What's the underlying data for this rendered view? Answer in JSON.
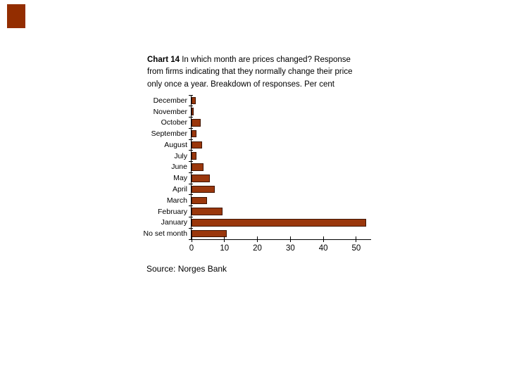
{
  "slide": {
    "background": "#ffffff",
    "accent_rect_color": "#932d00"
  },
  "title": {
    "bold": "Chart 14",
    "line1_rest": " In which month are prices changed? Response",
    "line2": "from firms indicating that they normally change their price",
    "line3": "only once a year. Breakdown of responses. Per cent"
  },
  "source_note": "Source: Norges Bank",
  "chart_data": {
    "type": "bar",
    "orientation": "horizontal",
    "title": "Chart 14 In which month are prices changed? Response from firms indicating that they normally change their price only once a year. Breakdown of responses. Per cent",
    "categories": [
      "December",
      "November",
      "October",
      "September",
      "August",
      "July",
      "June",
      "May",
      "April",
      "March",
      "February",
      "January",
      "No set month"
    ],
    "values": [
      1.2,
      0.6,
      2.8,
      1.5,
      3.3,
      1.6,
      3.7,
      5.5,
      7.0,
      4.7,
      9.5,
      53.0,
      10.7
    ],
    "value_unit": "per cent",
    "xlabel": "",
    "ylabel": "",
    "xlim": [
      0,
      54.5
    ],
    "xticks": [
      0,
      10,
      20,
      30,
      40,
      50
    ],
    "grid": false,
    "legend": "none",
    "bar_color": "#9a370c",
    "bar_border_color": "#3f1502",
    "axis_color": "#000000",
    "text_color": "#000000"
  }
}
